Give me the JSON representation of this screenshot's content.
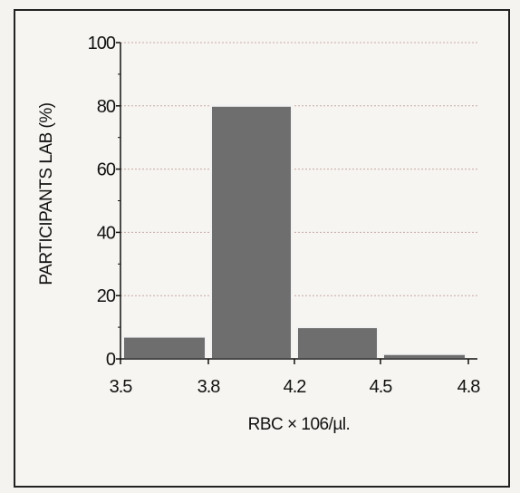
{
  "chart_data": {
    "type": "bar",
    "bins": [
      {
        "from": 3.5,
        "to": 3.8,
        "value": 7
      },
      {
        "from": 3.8,
        "to": 4.2,
        "value": 80
      },
      {
        "from": 4.2,
        "to": 4.5,
        "value": 10
      },
      {
        "from": 4.5,
        "to": 4.8,
        "value": 1.5
      }
    ],
    "x_ticks": [
      "3.5",
      "3.8",
      "4.2",
      "4.5",
      "4.8"
    ],
    "y_ticks": [
      "0",
      "20",
      "40",
      "60",
      "80",
      "100"
    ],
    "xlabel": "RBC × 106/µl.",
    "ylabel": "PARTICIPANTS LAB  (%)",
    "ylim": [
      0,
      100
    ],
    "grid": true,
    "colors": {
      "bar": "#6e6e6e",
      "bar_edge": "#f2f2f2",
      "grid": "#c9a9a3",
      "axis": "#111111"
    }
  }
}
